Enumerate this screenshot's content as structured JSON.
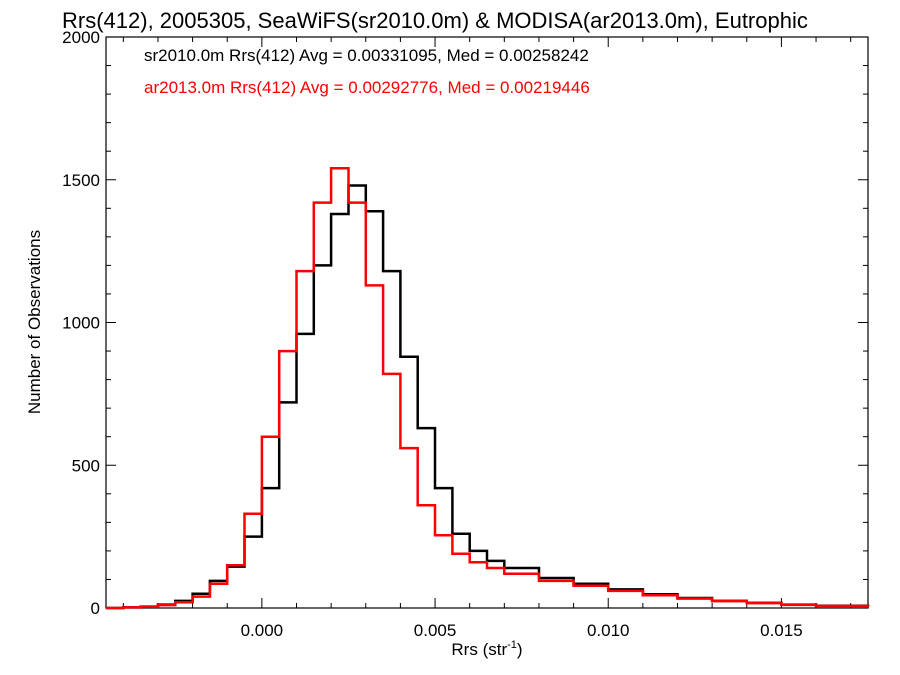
{
  "chart_data": {
    "type": "line",
    "title": "Rrs(412), 2005305, SeaWiFS(sr2010.0m) & MODISA(ar2013.0m), Eutrophic",
    "xlabel": "Rrs (str",
    "xlabel_sup": "-1",
    "xlabel_end": ")",
    "ylabel": "Number of Observations",
    "xlim": [
      -0.0045,
      0.0175
    ],
    "ylim": [
      0,
      2000
    ],
    "x_ticks": [
      0.0,
      0.005,
      0.01,
      0.015
    ],
    "x_tick_labels": [
      "0.000",
      "0.005",
      "0.010",
      "0.015"
    ],
    "y_ticks": [
      0,
      500,
      1000,
      1500,
      2000
    ],
    "y_tick_labels": [
      "0",
      "500",
      "1000",
      "1500",
      "2000"
    ],
    "series": [
      {
        "name": "sr2010.0m Rrs(412) Avg = 0.00331095, Med = 0.00258242",
        "color": "#000000",
        "points": [
          [
            -0.0045,
            0
          ],
          [
            -0.004,
            2
          ],
          [
            -0.0035,
            5
          ],
          [
            -0.003,
            12
          ],
          [
            -0.0025,
            25
          ],
          [
            -0.002,
            50
          ],
          [
            -0.0015,
            95
          ],
          [
            -0.001,
            145
          ],
          [
            -0.0005,
            250
          ],
          [
            0.0,
            420
          ],
          [
            0.0005,
            720
          ],
          [
            0.001,
            960
          ],
          [
            0.0015,
            1200
          ],
          [
            0.002,
            1380
          ],
          [
            0.0025,
            1480
          ],
          [
            0.003,
            1390
          ],
          [
            0.0035,
            1180
          ],
          [
            0.004,
            880
          ],
          [
            0.0045,
            630
          ],
          [
            0.005,
            420
          ],
          [
            0.0055,
            260
          ],
          [
            0.006,
            200
          ],
          [
            0.0065,
            165
          ],
          [
            0.007,
            140
          ],
          [
            0.008,
            105
          ],
          [
            0.009,
            85
          ],
          [
            0.01,
            65
          ],
          [
            0.011,
            48
          ],
          [
            0.012,
            35
          ],
          [
            0.013,
            25
          ],
          [
            0.014,
            18
          ],
          [
            0.015,
            12
          ],
          [
            0.016,
            8
          ],
          [
            0.0175,
            5
          ]
        ]
      },
      {
        "name": "ar2013.0m Rrs(412) Avg = 0.00292776, Med = 0.00219446",
        "color": "#ff0000",
        "points": [
          [
            -0.0045,
            0
          ],
          [
            -0.004,
            2
          ],
          [
            -0.0035,
            5
          ],
          [
            -0.003,
            10
          ],
          [
            -0.0025,
            20
          ],
          [
            -0.002,
            40
          ],
          [
            -0.0015,
            85
          ],
          [
            -0.001,
            150
          ],
          [
            -0.0005,
            330
          ],
          [
            0.0,
            600
          ],
          [
            0.0005,
            900
          ],
          [
            0.001,
            1180
          ],
          [
            0.0015,
            1420
          ],
          [
            0.002,
            1540
          ],
          [
            0.0025,
            1420
          ],
          [
            0.003,
            1130
          ],
          [
            0.0035,
            820
          ],
          [
            0.004,
            560
          ],
          [
            0.0045,
            360
          ],
          [
            0.005,
            255
          ],
          [
            0.0055,
            190
          ],
          [
            0.006,
            160
          ],
          [
            0.0065,
            140
          ],
          [
            0.007,
            120
          ],
          [
            0.008,
            95
          ],
          [
            0.009,
            78
          ],
          [
            0.01,
            60
          ],
          [
            0.011,
            45
          ],
          [
            0.012,
            33
          ],
          [
            0.013,
            24
          ],
          [
            0.014,
            17
          ],
          [
            0.015,
            11
          ],
          [
            0.016,
            7
          ],
          [
            0.0175,
            4
          ]
        ]
      }
    ],
    "legend_placement": "top-left"
  }
}
